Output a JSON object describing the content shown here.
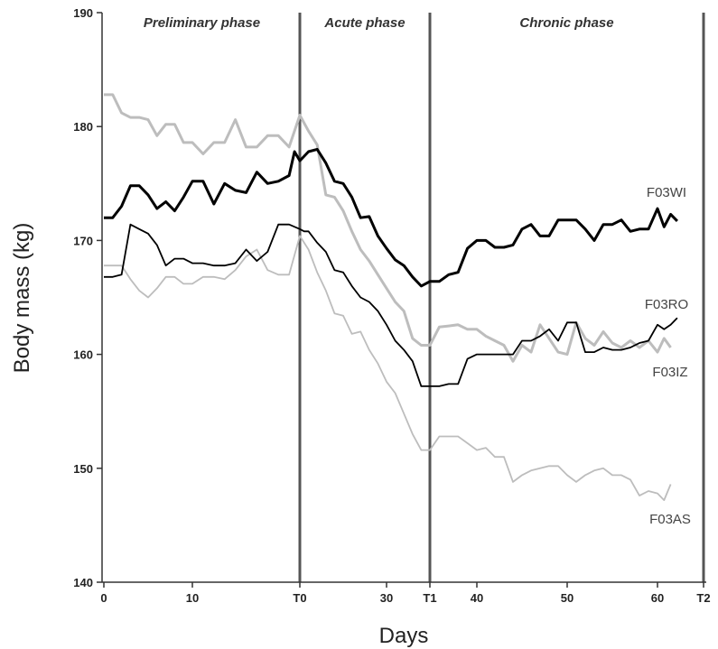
{
  "chart_data": {
    "type": "line",
    "xlabel": "Days",
    "ylabel": "Body mass (kg)",
    "xlim": [
      0,
      77
    ],
    "ylim": [
      140,
      190
    ],
    "yticks": [
      140,
      150,
      160,
      170,
      180,
      190
    ],
    "xticks": [
      {
        "value": 0,
        "label": "0"
      },
      {
        "value": 10,
        "label": "10"
      },
      {
        "value": 20,
        "label": "T0"
      },
      {
        "value": 30,
        "label": "30"
      },
      {
        "value": 35,
        "label": "T1"
      },
      {
        "value": 40,
        "label": "40"
      },
      {
        "value": 50,
        "label": "50"
      },
      {
        "value": 60,
        "label": "60"
      },
      {
        "value": 67,
        "label": "T2"
      }
    ],
    "phases": [
      {
        "name": "Preliminary phase",
        "start": 0,
        "end": 20
      },
      {
        "name": "Acute phase",
        "start": 20,
        "end": 35
      },
      {
        "name": "Chronic phase",
        "start": 35,
        "end": 67
      }
    ],
    "phase_lines": [
      20,
      35,
      67
    ],
    "series": [
      {
        "name": "F03WI",
        "color": "#000000",
        "width": 3,
        "points": [
          [
            0,
            172
          ],
          [
            1,
            172
          ],
          [
            2,
            173
          ],
          [
            3,
            174.8
          ],
          [
            4,
            174.8
          ],
          [
            5,
            174
          ],
          [
            6,
            172.8
          ],
          [
            7,
            173.4
          ],
          [
            8,
            172.6
          ],
          [
            9,
            173.8
          ],
          [
            10,
            175.2
          ],
          [
            11,
            175.2
          ],
          [
            12,
            173.2
          ],
          [
            13,
            175
          ],
          [
            14,
            174.4
          ],
          [
            15,
            174.2
          ],
          [
            16,
            176
          ],
          [
            17,
            175
          ],
          [
            18,
            175.2
          ],
          [
            19,
            175.7
          ],
          [
            19.5,
            177.8
          ],
          [
            20,
            177
          ],
          [
            21,
            177.8
          ],
          [
            22,
            178
          ],
          [
            23,
            176.8
          ],
          [
            24,
            175.2
          ],
          [
            25,
            175
          ],
          [
            26,
            173.8
          ],
          [
            27,
            172
          ],
          [
            28,
            172.1
          ],
          [
            29,
            170.4
          ],
          [
            30,
            169.3
          ],
          [
            31,
            168.3
          ],
          [
            32,
            167.8
          ],
          [
            33,
            166.8
          ],
          [
            34,
            166
          ],
          [
            35,
            166.4
          ],
          [
            36,
            166.4
          ],
          [
            37,
            167
          ],
          [
            38,
            167.2
          ],
          [
            39,
            169.3
          ],
          [
            40,
            170
          ],
          [
            41,
            170
          ],
          [
            42,
            169.4
          ],
          [
            43,
            169.4
          ],
          [
            44,
            169.6
          ],
          [
            45,
            171
          ],
          [
            46,
            171.4
          ],
          [
            47,
            170.4
          ],
          [
            48,
            170.4
          ],
          [
            49,
            171.8
          ],
          [
            50,
            171.8
          ],
          [
            51,
            171.8
          ],
          [
            52,
            171
          ],
          [
            53,
            170
          ],
          [
            54,
            171.4
          ],
          [
            55,
            171.4
          ],
          [
            56,
            171.8
          ],
          [
            57,
            170.8
          ],
          [
            58,
            171
          ],
          [
            59,
            171
          ],
          [
            60,
            172.8
          ],
          [
            61,
            171.2
          ],
          [
            62,
            172.3
          ],
          [
            63,
            171.7
          ]
        ]
      },
      {
        "name": "F03RO",
        "color": "#bdbdbd",
        "width": 3,
        "points": [
          [
            0,
            182.8
          ],
          [
            1,
            182.8
          ],
          [
            2,
            181.2
          ],
          [
            3,
            180.8
          ],
          [
            4,
            180.8
          ],
          [
            5,
            180.6
          ],
          [
            6,
            179.2
          ],
          [
            7,
            180.2
          ],
          [
            8,
            180.2
          ],
          [
            9,
            178.6
          ],
          [
            10,
            178.6
          ],
          [
            11,
            177.6
          ],
          [
            12,
            178.6
          ],
          [
            13,
            178.6
          ],
          [
            14,
            180.6
          ],
          [
            15,
            178.2
          ],
          [
            16,
            178.2
          ],
          [
            17,
            179.2
          ],
          [
            18,
            179.2
          ],
          [
            19,
            178.2
          ],
          [
            20,
            181
          ],
          [
            21,
            179.6
          ],
          [
            22,
            178.4
          ],
          [
            23,
            174
          ],
          [
            24,
            173.8
          ],
          [
            25,
            172.6
          ],
          [
            26,
            170.8
          ],
          [
            27,
            169.2
          ],
          [
            28,
            168.2
          ],
          [
            29,
            167
          ],
          [
            30,
            165.8
          ],
          [
            31,
            164.6
          ],
          [
            32,
            163.8
          ],
          [
            33,
            161.4
          ],
          [
            34,
            160.8
          ],
          [
            35,
            160.8
          ],
          [
            36,
            162.4
          ],
          [
            37,
            162.5
          ],
          [
            38,
            162.6
          ],
          [
            39,
            162.2
          ],
          [
            40,
            162.2
          ],
          [
            41,
            161.6
          ],
          [
            42,
            161.2
          ],
          [
            43,
            160.8
          ],
          [
            44,
            159.4
          ],
          [
            45,
            160.8
          ],
          [
            46,
            160.2
          ],
          [
            47,
            162.6
          ],
          [
            48,
            161.4
          ],
          [
            49,
            160.2
          ],
          [
            50,
            160
          ],
          [
            51,
            162.8
          ],
          [
            52,
            161.4
          ],
          [
            53,
            160.8
          ],
          [
            54,
            162
          ],
          [
            55,
            161
          ],
          [
            56,
            160.6
          ],
          [
            57,
            161.2
          ],
          [
            58,
            160.6
          ],
          [
            59,
            161.2
          ],
          [
            60,
            160.2
          ],
          [
            61,
            161.4
          ],
          [
            62,
            160.6
          ]
        ]
      },
      {
        "name": "F03IZ",
        "color": "#000000",
        "width": 1.8,
        "points": [
          [
            0,
            166.8
          ],
          [
            1,
            166.8
          ],
          [
            2,
            167
          ],
          [
            3,
            171.4
          ],
          [
            4,
            171
          ],
          [
            5,
            170.6
          ],
          [
            6,
            169.6
          ],
          [
            7,
            167.8
          ],
          [
            8,
            168.4
          ],
          [
            9,
            168.4
          ],
          [
            10,
            168
          ],
          [
            11,
            168
          ],
          [
            12,
            167.8
          ],
          [
            13,
            167.8
          ],
          [
            14,
            168
          ],
          [
            15,
            169.2
          ],
          [
            16,
            168.2
          ],
          [
            17,
            169
          ],
          [
            18,
            171.4
          ],
          [
            19,
            171.4
          ],
          [
            20,
            171
          ],
          [
            20.5,
            170.8
          ],
          [
            21,
            170.8
          ],
          [
            22,
            169.8
          ],
          [
            23,
            169
          ],
          [
            24,
            167.4
          ],
          [
            25,
            167.2
          ],
          [
            26,
            166
          ],
          [
            27,
            165
          ],
          [
            28,
            164.6
          ],
          [
            29,
            163.8
          ],
          [
            30,
            162.6
          ],
          [
            31,
            161.2
          ],
          [
            32,
            160.4
          ],
          [
            33,
            159.4
          ],
          [
            34,
            157.2
          ],
          [
            35,
            157.2
          ],
          [
            36,
            157.2
          ],
          [
            37,
            157.4
          ],
          [
            38,
            157.4
          ],
          [
            39,
            159.6
          ],
          [
            40,
            160
          ],
          [
            41,
            160
          ],
          [
            42,
            160
          ],
          [
            43,
            160
          ],
          [
            44,
            160
          ],
          [
            45,
            161.2
          ],
          [
            46,
            161.2
          ],
          [
            47,
            161.6
          ],
          [
            48,
            162.2
          ],
          [
            49,
            161.2
          ],
          [
            50,
            162.8
          ],
          [
            51,
            162.8
          ],
          [
            52,
            160.2
          ],
          [
            53,
            160.2
          ],
          [
            54,
            160.6
          ],
          [
            55,
            160.4
          ],
          [
            56,
            160.4
          ],
          [
            57,
            160.6
          ],
          [
            58,
            161
          ],
          [
            59,
            161.2
          ],
          [
            60,
            162.6
          ],
          [
            61,
            162.2
          ],
          [
            62,
            162.6
          ],
          [
            63,
            163.2
          ]
        ]
      },
      {
        "name": "F03AS",
        "color": "#bdbdbd",
        "width": 1.8,
        "points": [
          [
            0,
            167.8
          ],
          [
            1,
            167.8
          ],
          [
            2,
            167.8
          ],
          [
            3,
            166.6
          ],
          [
            4,
            165.6
          ],
          [
            5,
            165
          ],
          [
            6,
            165.8
          ],
          [
            7,
            166.8
          ],
          [
            8,
            166.8
          ],
          [
            9,
            166.2
          ],
          [
            10,
            166.2
          ],
          [
            11,
            166.8
          ],
          [
            12,
            166.8
          ],
          [
            13,
            166.6
          ],
          [
            14,
            167.4
          ],
          [
            15,
            168.6
          ],
          [
            16,
            169.2
          ],
          [
            17,
            167.4
          ],
          [
            18,
            167
          ],
          [
            19,
            167
          ],
          [
            20,
            170.4
          ],
          [
            21,
            169.2
          ],
          [
            22,
            167.2
          ],
          [
            23,
            165.6
          ],
          [
            24,
            163.6
          ],
          [
            25,
            163.4
          ],
          [
            26,
            161.8
          ],
          [
            27,
            162
          ],
          [
            28,
            160.4
          ],
          [
            29,
            159.2
          ],
          [
            30,
            157.6
          ],
          [
            31,
            156.6
          ],
          [
            32,
            154.8
          ],
          [
            33,
            153
          ],
          [
            34,
            151.6
          ],
          [
            35,
            151.6
          ],
          [
            36,
            152.8
          ],
          [
            37,
            152.8
          ],
          [
            38,
            152.8
          ],
          [
            39,
            152.2
          ],
          [
            40,
            151.6
          ],
          [
            41,
            151.8
          ],
          [
            42,
            151
          ],
          [
            43,
            151
          ],
          [
            44,
            148.8
          ],
          [
            45,
            149.4
          ],
          [
            46,
            149.8
          ],
          [
            47,
            150
          ],
          [
            48,
            150.2
          ],
          [
            49,
            150.2
          ],
          [
            50,
            149.4
          ],
          [
            51,
            148.8
          ],
          [
            52,
            149.4
          ],
          [
            53,
            149.8
          ],
          [
            54,
            150
          ],
          [
            55,
            149.4
          ],
          [
            56,
            149.4
          ],
          [
            57,
            149
          ],
          [
            58,
            147.6
          ],
          [
            59,
            148
          ],
          [
            60,
            147.8
          ],
          [
            61,
            147.2
          ],
          [
            62,
            148.6
          ]
        ]
      }
    ],
    "series_labels": [
      {
        "name": "F03WI",
        "text": "F03WI"
      },
      {
        "name": "F03RO",
        "text": "F03RO"
      },
      {
        "name": "F03IZ",
        "text": "F03IZ"
      },
      {
        "name": "F03AS",
        "text": "F03AS"
      }
    ],
    "grid": false,
    "legend": "none"
  }
}
